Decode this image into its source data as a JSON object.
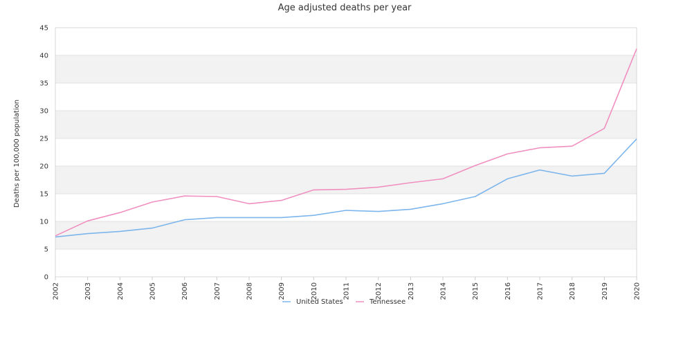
{
  "chart_data": {
    "type": "line",
    "title": "Age adjusted deaths per year",
    "xlabel": "",
    "ylabel": "Deaths per 100,000 population",
    "categories": [
      "2002",
      "2003",
      "2004",
      "2005",
      "2006",
      "2007",
      "2008",
      "2009",
      "2010",
      "2011",
      "2012",
      "2013",
      "2014",
      "2015",
      "2016",
      "2017",
      "2018",
      "2019",
      "2020"
    ],
    "ylim": [
      0,
      45
    ],
    "yticks": [
      0,
      5,
      10,
      15,
      20,
      25,
      30,
      35,
      40,
      45
    ],
    "grid": true,
    "banded_background": true,
    "legend_position": "bottom-center",
    "series": [
      {
        "name": "United States",
        "color": "#7cb5ec",
        "values": [
          7.2,
          7.8,
          8.2,
          8.8,
          10.3,
          10.7,
          10.7,
          10.7,
          11.1,
          12.0,
          11.8,
          12.2,
          13.2,
          14.5,
          17.7,
          19.3,
          18.2,
          18.7,
          24.9
        ]
      },
      {
        "name": "Tennessee",
        "color": "#f08fc0",
        "values": [
          7.4,
          10.1,
          11.6,
          13.5,
          14.6,
          14.5,
          13.2,
          13.8,
          15.7,
          15.8,
          16.2,
          17.0,
          17.7,
          20.1,
          22.2,
          23.3,
          23.6,
          26.8,
          41.2
        ]
      }
    ]
  }
}
